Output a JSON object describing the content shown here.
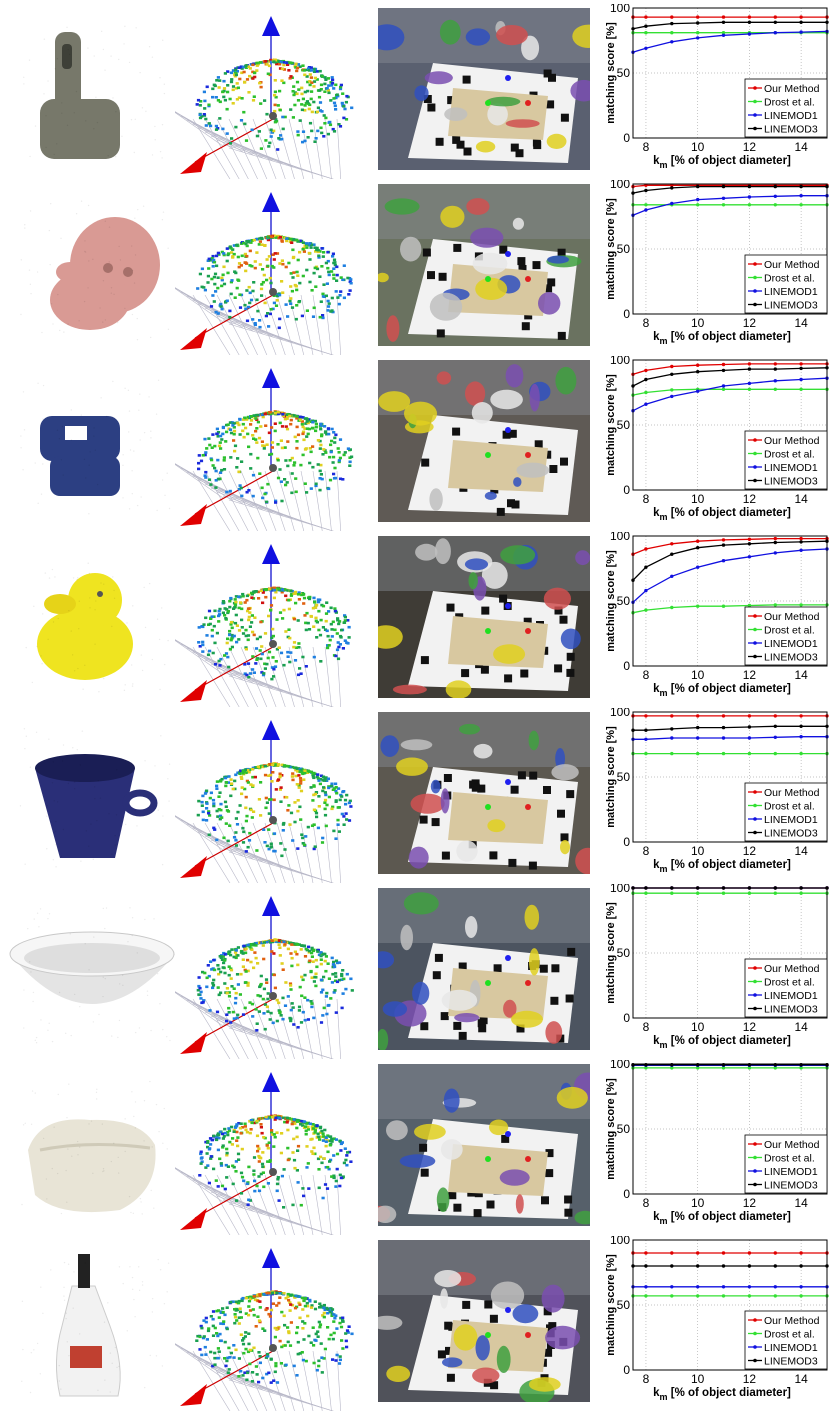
{
  "legend": [
    "Our Method",
    "Drost et al.",
    "LINEMOD1",
    "LINEMOD3"
  ],
  "colors": {
    "Our Method": "#e00000",
    "Drost et al.": "#33e033",
    "LINEMOD1": "#1010e0",
    "LINEMOD3": "#000000"
  },
  "ylabel": "matching score [%]",
  "xlabel_k": "k",
  "xlabel_m": "m",
  "xlabel_rest": " [% of object diameter]",
  "yticks": [
    "0",
    "50",
    "100"
  ],
  "xticks": [
    "8",
    "10",
    "12",
    "14"
  ],
  "rows": [
    {
      "object": "iron",
      "objColor": "#77786a",
      "sceneTone": "#5a6070"
    },
    {
      "object": "cat",
      "objColor": "#d99a94",
      "sceneTone": "#6a7260"
    },
    {
      "object": "holepuncher",
      "objColor": "#2c3f82",
      "sceneTone": "#5f5a55"
    },
    {
      "object": "duck",
      "objColor": "#efe420",
      "sceneTone": "#3f3c36"
    },
    {
      "object": "cup",
      "objColor": "#2a2f78",
      "sceneTone": "#5c5850"
    },
    {
      "object": "bowl",
      "objColor": "#e4e4e4",
      "sceneTone": "#4c5460"
    },
    {
      "object": "eggbox",
      "objColor": "#e8e4d6",
      "sceneTone": "#56606a"
    },
    {
      "object": "glue",
      "objColor": "#f2f2f2",
      "sceneTone": "#50525a"
    }
  ],
  "chart_data": [
    {
      "type": "line",
      "x": [
        7.5,
        8,
        9,
        10,
        11,
        12,
        13,
        14,
        15
      ],
      "xlim": [
        7.5,
        15
      ],
      "ylim": [
        0,
        100
      ],
      "grid": true,
      "legend_position": "bottom-right",
      "ylabel": "matching score [%]",
      "xlabel": "k_m [% of object diameter]",
      "series": [
        {
          "name": "Our Method",
          "values": [
            93,
            93,
            93,
            93,
            93,
            93,
            93,
            93,
            93
          ]
        },
        {
          "name": "Drost et al.",
          "values": [
            81,
            81,
            81,
            81,
            81,
            81,
            81,
            81,
            81
          ]
        },
        {
          "name": "LINEMOD1",
          "values": [
            66,
            69,
            74,
            77,
            79,
            80,
            81,
            81.5,
            82
          ]
        },
        {
          "name": "LINEMOD3",
          "values": [
            84,
            86,
            88,
            88.5,
            89,
            89,
            89,
            89,
            89
          ]
        }
      ]
    },
    {
      "type": "line",
      "x": [
        7.5,
        8,
        9,
        10,
        11,
        12,
        13,
        14,
        15
      ],
      "xlim": [
        7.5,
        15
      ],
      "ylim": [
        0,
        100
      ],
      "grid": true,
      "legend_position": "bottom-right",
      "ylabel": "matching score [%]",
      "xlabel": "k_m [% of object diameter]",
      "series": [
        {
          "name": "Our Method",
          "values": [
            98,
            99,
            99,
            99,
            99,
            99,
            99,
            99,
            99
          ]
        },
        {
          "name": "Drost et al.",
          "values": [
            84,
            84,
            84,
            84,
            84,
            84,
            84,
            84,
            84
          ]
        },
        {
          "name": "LINEMOD1",
          "values": [
            76,
            80,
            85,
            88,
            89,
            90,
            90.5,
            91,
            91
          ]
        },
        {
          "name": "LINEMOD3",
          "values": [
            93,
            95,
            97,
            98,
            98,
            98,
            98,
            98,
            98
          ]
        }
      ]
    },
    {
      "type": "line",
      "x": [
        7.5,
        8,
        9,
        10,
        11,
        12,
        13,
        14,
        15
      ],
      "xlim": [
        7.5,
        15
      ],
      "ylim": [
        0,
        100
      ],
      "grid": true,
      "legend_position": "bottom-right",
      "ylabel": "matching score [%]",
      "xlabel": "k_m [% of object diameter]",
      "series": [
        {
          "name": "Our Method",
          "values": [
            89,
            92,
            95,
            96,
            96.5,
            97,
            97,
            97,
            97
          ]
        },
        {
          "name": "Drost et al.",
          "values": [
            73,
            75,
            77,
            77.5,
            77.5,
            77.5,
            77.5,
            77.5,
            77.5
          ]
        },
        {
          "name": "LINEMOD1",
          "values": [
            61,
            66,
            72,
            76,
            80,
            82,
            84,
            85,
            86
          ]
        },
        {
          "name": "LINEMOD3",
          "values": [
            80,
            85,
            89,
            91,
            92,
            93,
            93,
            93.5,
            94
          ]
        }
      ]
    },
    {
      "type": "line",
      "x": [
        7.5,
        8,
        9,
        10,
        11,
        12,
        13,
        14,
        15
      ],
      "xlim": [
        7.5,
        15
      ],
      "ylim": [
        0,
        100
      ],
      "grid": true,
      "legend_position": "bottom-right",
      "ylabel": "matching score [%]",
      "xlabel": "k_m [% of object diameter]",
      "series": [
        {
          "name": "Our Method",
          "values": [
            86,
            90,
            94,
            96,
            97,
            97.5,
            98,
            98,
            98
          ]
        },
        {
          "name": "Drost et al.",
          "values": [
            41,
            43,
            45,
            46,
            46,
            46.5,
            47,
            47,
            47
          ]
        },
        {
          "name": "LINEMOD1",
          "values": [
            49,
            58,
            69,
            76,
            81,
            84,
            87,
            89,
            90
          ]
        },
        {
          "name": "LINEMOD3",
          "values": [
            66,
            76,
            86,
            91,
            93,
            94,
            95,
            95.5,
            96
          ]
        }
      ]
    },
    {
      "type": "line",
      "x": [
        7.5,
        8,
        9,
        10,
        11,
        12,
        13,
        14,
        15
      ],
      "xlim": [
        7.5,
        15
      ],
      "ylim": [
        0,
        100
      ],
      "grid": true,
      "legend_position": "bottom-right",
      "ylabel": "matching score [%]",
      "xlabel": "k_m [% of object diameter]",
      "series": [
        {
          "name": "Our Method",
          "values": [
            97,
            97,
            97,
            97,
            97,
            97,
            97,
            97,
            97
          ]
        },
        {
          "name": "Drost et al.",
          "values": [
            68,
            68,
            68,
            68,
            68,
            68,
            68,
            68,
            68
          ]
        },
        {
          "name": "LINEMOD1",
          "values": [
            79,
            79,
            80,
            80,
            80,
            80,
            80.5,
            81,
            81
          ]
        },
        {
          "name": "LINEMOD3",
          "values": [
            86,
            86,
            87,
            88,
            88,
            88.5,
            89,
            89,
            89
          ]
        }
      ]
    },
    {
      "type": "line",
      "x": [
        7.5,
        8,
        9,
        10,
        11,
        12,
        13,
        14,
        15
      ],
      "xlim": [
        7.5,
        15
      ],
      "ylim": [
        0,
        100
      ],
      "grid": true,
      "legend_position": "bottom-right",
      "ylabel": "matching score [%]",
      "xlabel": "k_m [% of object diameter]",
      "series": [
        {
          "name": "Our Method",
          "values": [
            100,
            100,
            100,
            100,
            100,
            100,
            100,
            100,
            100
          ]
        },
        {
          "name": "Drost et al.",
          "values": [
            96,
            96,
            96,
            96,
            96,
            96,
            96,
            96,
            96
          ]
        },
        {
          "name": "LINEMOD1",
          "values": [
            100,
            100,
            100,
            100,
            100,
            100,
            100,
            100,
            100
          ]
        },
        {
          "name": "LINEMOD3",
          "values": [
            100,
            100,
            100,
            100,
            100,
            100,
            100,
            100,
            100
          ]
        }
      ]
    },
    {
      "type": "line",
      "x": [
        7.5,
        8,
        9,
        10,
        11,
        12,
        13,
        14,
        15
      ],
      "xlim": [
        7.5,
        15
      ],
      "ylim": [
        0,
        100
      ],
      "grid": true,
      "legend_position": "bottom-right",
      "ylabel": "matching score [%]",
      "xlabel": "k_m [% of object diameter]",
      "series": [
        {
          "name": "Our Method",
          "values": [
            99,
            99,
            99,
            99,
            99,
            99,
            99,
            99,
            99
          ]
        },
        {
          "name": "Drost et al.",
          "values": [
            97,
            97,
            97,
            97,
            97,
            97,
            97,
            97,
            97
          ]
        },
        {
          "name": "LINEMOD1",
          "values": [
            99,
            99,
            99,
            99,
            99,
            99,
            99,
            99,
            99
          ]
        },
        {
          "name": "LINEMOD3",
          "values": [
            99.5,
            99.5,
            99.5,
            99.5,
            99.5,
            99.5,
            99.5,
            99.5,
            99.5
          ]
        }
      ]
    },
    {
      "type": "line",
      "x": [
        7.5,
        8,
        9,
        10,
        11,
        12,
        13,
        14,
        15
      ],
      "xlim": [
        7.5,
        15
      ],
      "ylim": [
        0,
        100
      ],
      "grid": true,
      "legend_position": "bottom-right",
      "ylabel": "matching score [%]",
      "xlabel": "k_m [% of object diameter]",
      "series": [
        {
          "name": "Our Method",
          "values": [
            90,
            90,
            90,
            90,
            90,
            90,
            90,
            90,
            90
          ]
        },
        {
          "name": "Drost et al.",
          "values": [
            57,
            57,
            57,
            57,
            57,
            57,
            57,
            57,
            57
          ]
        },
        {
          "name": "LINEMOD1",
          "values": [
            64,
            64,
            64,
            64,
            64,
            64,
            64,
            64,
            64
          ]
        },
        {
          "name": "LINEMOD3",
          "values": [
            80,
            80,
            80,
            80,
            80,
            80,
            80,
            80,
            80
          ]
        }
      ]
    }
  ]
}
